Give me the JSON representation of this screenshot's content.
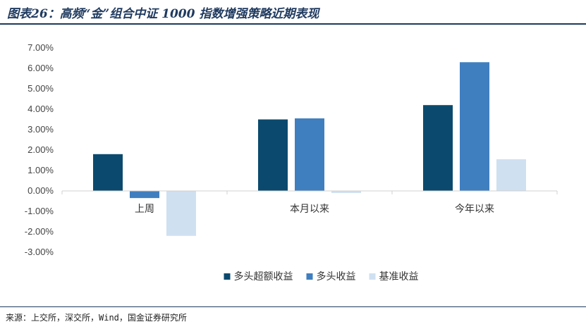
{
  "header": {
    "title": "图表26：高频“金”组合中证 1000 指数增强策略近期表现"
  },
  "footer": {
    "source": "来源：上交所，深交所，Wind，国金证券研究所"
  },
  "chart_data": {
    "type": "bar",
    "title": "",
    "xlabel": "",
    "ylabel": "",
    "categories": [
      "上周",
      "本月以来",
      "今年以来"
    ],
    "series": [
      {
        "name": "多头超额收益",
        "values": [
          1.8,
          3.5,
          4.2
        ],
        "color": "#0b4a6e"
      },
      {
        "name": "多头收益",
        "values": [
          -0.35,
          3.55,
          6.3
        ],
        "color": "#3f7fbf"
      },
      {
        "name": "基准收益",
        "values": [
          -2.2,
          -0.1,
          1.55
        ],
        "color": "#cfe0f1"
      }
    ],
    "ylim": [
      -3,
      7
    ],
    "yticks": [
      "-3.00%",
      "-2.00%",
      "-1.00%",
      "0.00%",
      "1.00%",
      "2.00%",
      "3.00%",
      "4.00%",
      "5.00%",
      "6.00%",
      "7.00%"
    ],
    "grid": false,
    "legend": "bottom"
  }
}
